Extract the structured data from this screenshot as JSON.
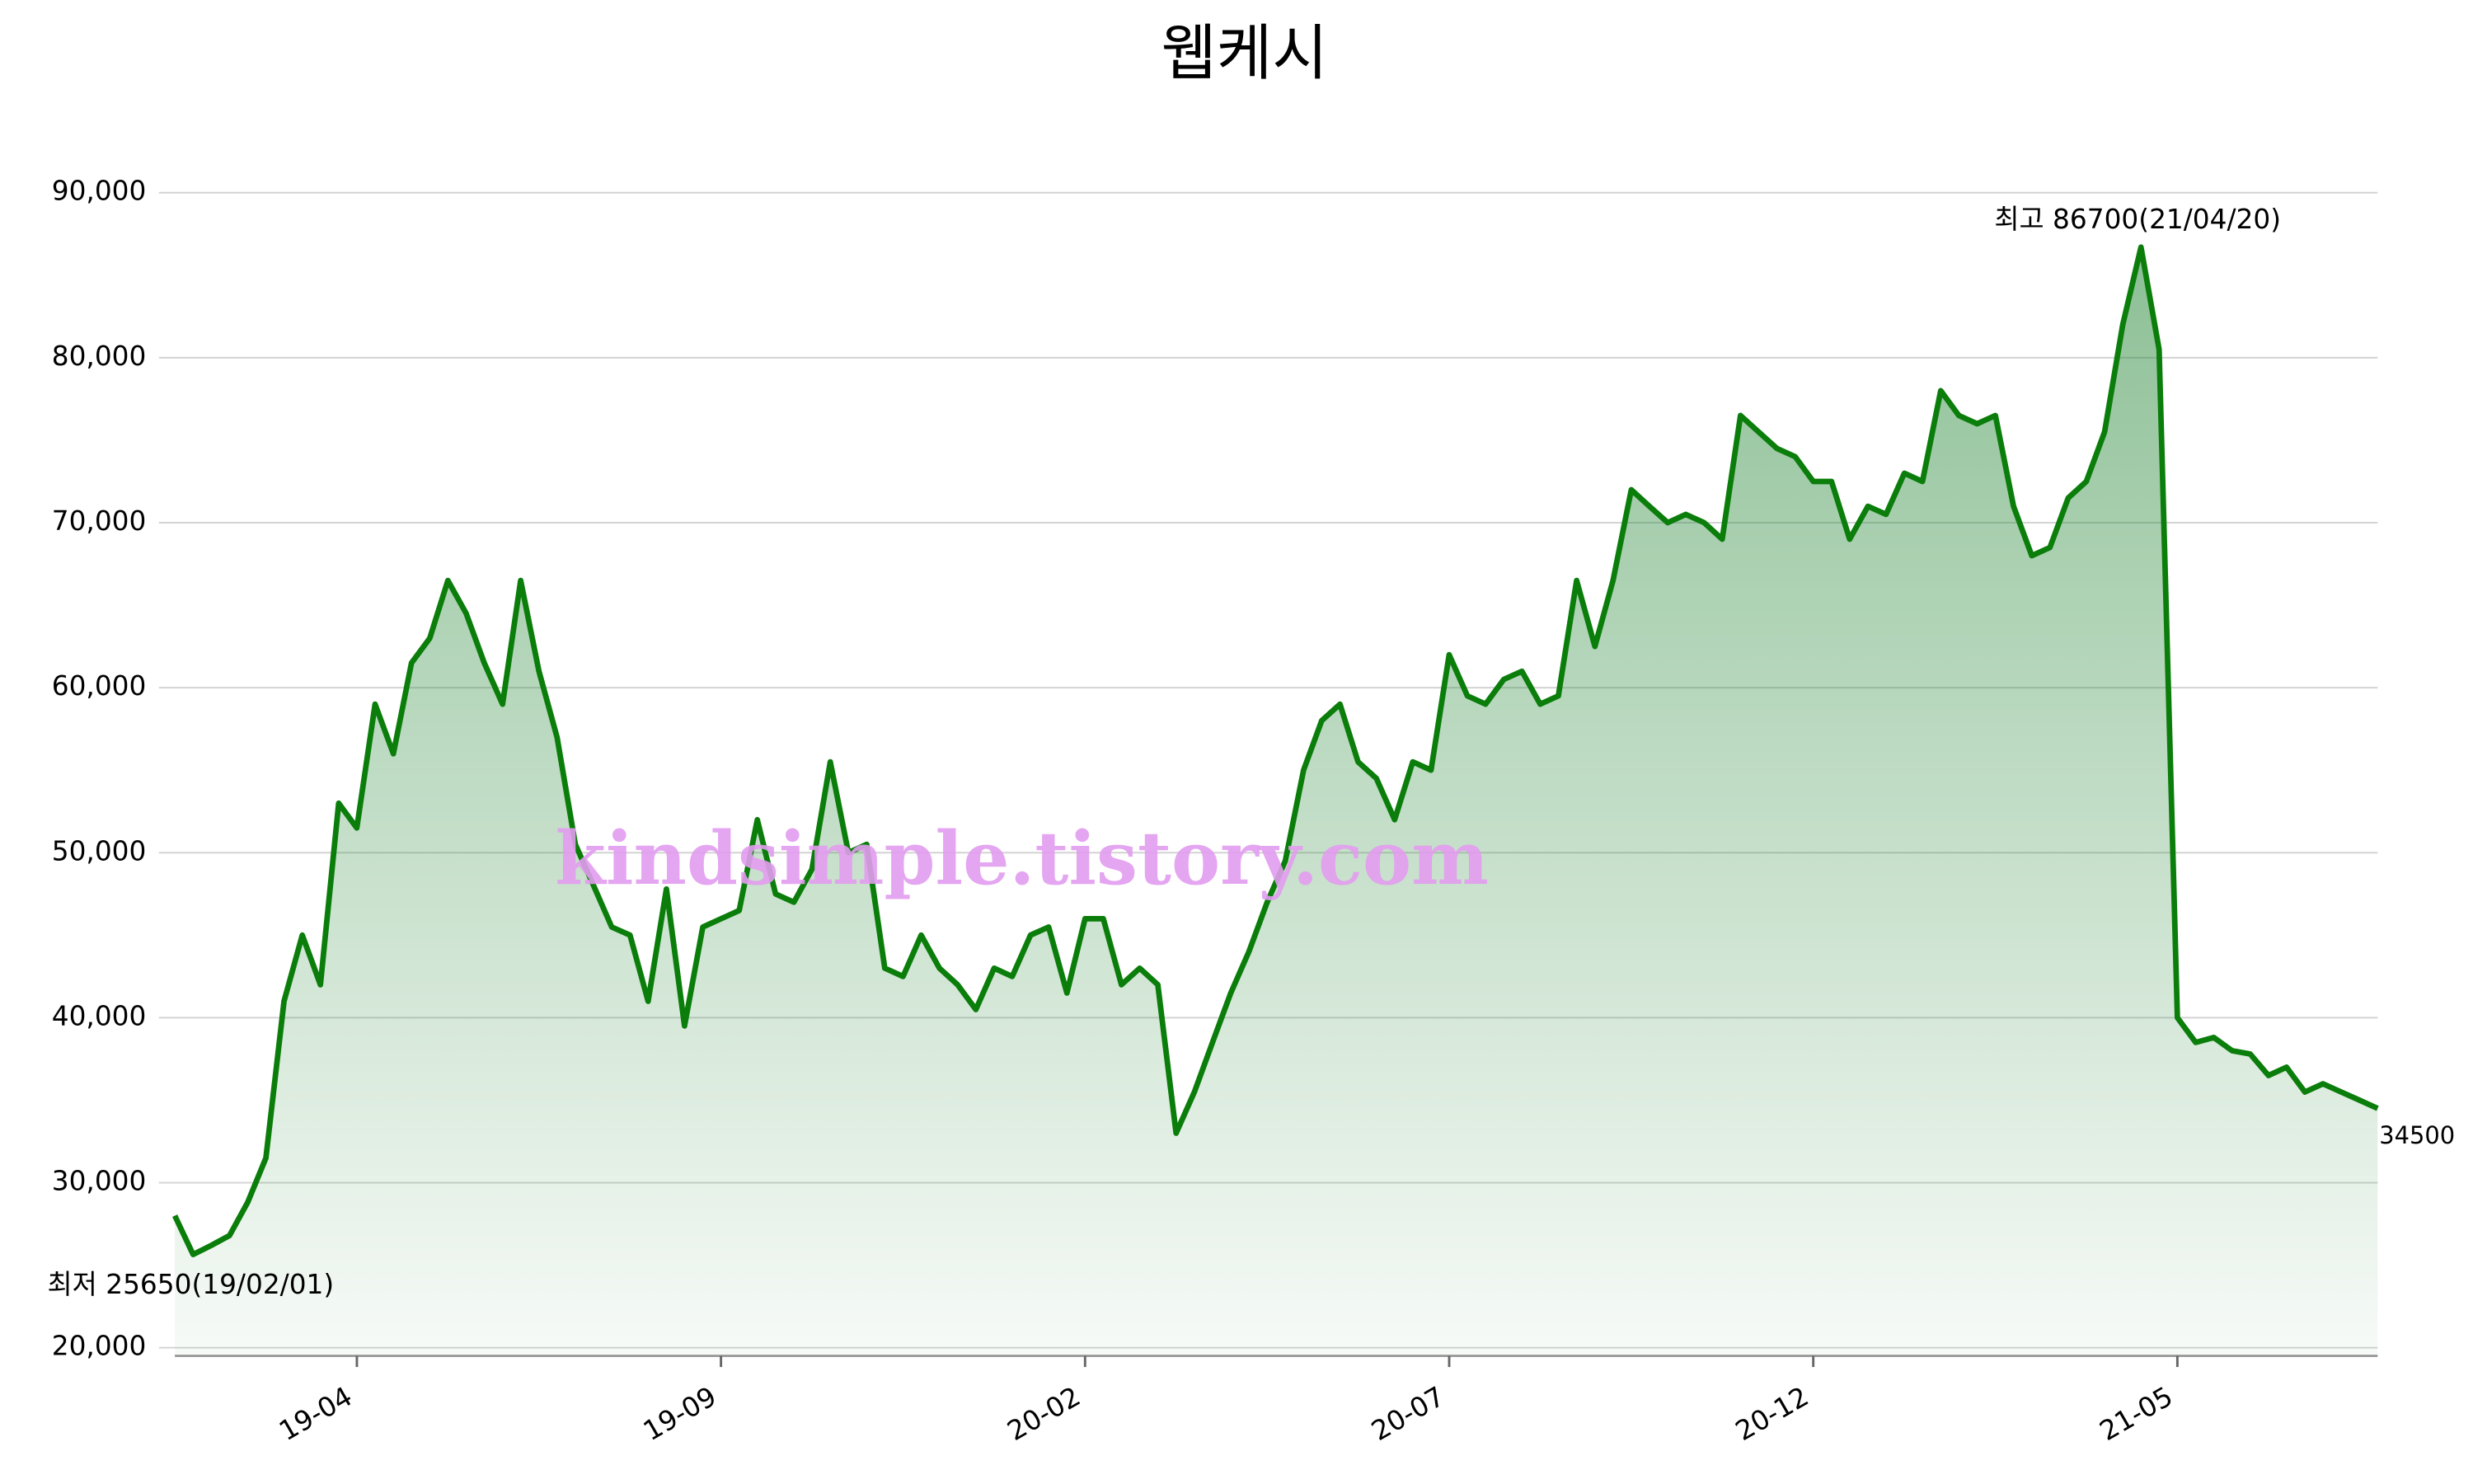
{
  "chart_data": {
    "type": "area",
    "title": "웹케시",
    "x": [
      "19-01",
      "19-01",
      "19-02",
      "19-02",
      "19-02",
      "19-02",
      "19-03",
      "19-03",
      "19-03",
      "19-03",
      "19-04",
      "19-04",
      "19-04",
      "19-04",
      "19-05",
      "19-05",
      "19-05",
      "19-05",
      "19-06",
      "19-06",
      "19-06",
      "19-06",
      "19-07",
      "19-07",
      "19-07",
      "19-07",
      "19-08",
      "19-08",
      "19-08",
      "19-08",
      "19-09",
      "19-09",
      "19-09",
      "19-09",
      "19-10",
      "19-10",
      "19-10",
      "19-10",
      "19-11",
      "19-11",
      "19-11",
      "19-11",
      "19-12",
      "19-12",
      "19-12",
      "19-12",
      "20-01",
      "20-01",
      "20-01",
      "20-01",
      "20-02",
      "20-02",
      "20-02",
      "20-02",
      "20-03",
      "20-03",
      "20-03",
      "20-03",
      "20-04",
      "20-04",
      "20-04",
      "20-04",
      "20-05",
      "20-05",
      "20-05",
      "20-05",
      "20-06",
      "20-06",
      "20-06",
      "20-06",
      "20-07",
      "20-07",
      "20-07",
      "20-07",
      "20-08",
      "20-08",
      "20-08",
      "20-08",
      "20-09",
      "20-09",
      "20-09",
      "20-09",
      "20-10",
      "20-10",
      "20-10",
      "20-10",
      "20-11",
      "20-11",
      "20-11",
      "20-11",
      "20-12",
      "20-12",
      "20-12",
      "20-12",
      "21-01",
      "21-01",
      "21-01",
      "21-01",
      "21-02",
      "21-02",
      "21-02",
      "21-02",
      "21-03",
      "21-03",
      "21-03",
      "21-03",
      "21-04",
      "21-04",
      "21-04",
      "21-04",
      "21-05",
      "21-05",
      "21-05",
      "21-05",
      "21-06",
      "21-06",
      "21-06",
      "21-06",
      "21-07",
      "21-07",
      "21-07",
      "21-07"
    ],
    "series": [
      {
        "name": "웹케시",
        "color": "#0a7d0a",
        "values": [
          28000,
          25650,
          26200,
          26800,
          28800,
          31500,
          41000,
          45000,
          42000,
          53000,
          51500,
          59000,
          56000,
          61500,
          63000,
          66500,
          64500,
          61500,
          59000,
          66500,
          61000,
          57000,
          50500,
          48000,
          45500,
          45000,
          41000,
          47800,
          39500,
          45500,
          46000,
          46500,
          52000,
          47500,
          47000,
          49000,
          55500,
          50000,
          50500,
          43000,
          42500,
          45000,
          43000,
          42000,
          40500,
          43000,
          42500,
          45000,
          45500,
          41500,
          46000,
          46000,
          42000,
          43000,
          42000,
          33000,
          35500,
          38500,
          41500,
          44000,
          47000,
          49500,
          55000,
          58000,
          59000,
          55500,
          54500,
          52000,
          55500,
          55000,
          62000,
          59500,
          59000,
          60500,
          61000,
          59000,
          59500,
          66500,
          62500,
          66500,
          72000,
          71000,
          70000,
          70500,
          70000,
          69000,
          76500,
          75500,
          74500,
          74000,
          72500,
          72500,
          69000,
          71000,
          70500,
          73000,
          72500,
          78000,
          76500,
          76000,
          76500,
          71000,
          68000,
          68500,
          71500,
          72500,
          75500,
          82000,
          86700,
          80500,
          40000,
          38500,
          38800,
          38000,
          37800,
          36500,
          37000,
          35500,
          36000,
          35500,
          35000,
          34500
        ]
      }
    ],
    "ylim": [
      19600,
      90600
    ],
    "yticks": [
      {
        "value": 20000,
        "label": "20,000"
      },
      {
        "value": 30000,
        "label": "30,000"
      },
      {
        "value": 40000,
        "label": "40,000"
      },
      {
        "value": 50000,
        "label": "50,000"
      },
      {
        "value": 60000,
        "label": "60,000"
      },
      {
        "value": 70000,
        "label": "70,000"
      },
      {
        "value": 80000,
        "label": "80,000"
      },
      {
        "value": 90000,
        "label": "90,000"
      }
    ],
    "xticks": [
      "19-04",
      "19-09",
      "20-02",
      "20-07",
      "20-12",
      "21-05"
    ],
    "grid": true,
    "annotations": [
      {
        "text": "최고 86700(21/04/20)",
        "color": "#ff0000"
      },
      {
        "text": "최저 25650(19/02/01)",
        "color": "#0000ff"
      }
    ],
    "watermark": "kindsimple.tistory.com"
  }
}
